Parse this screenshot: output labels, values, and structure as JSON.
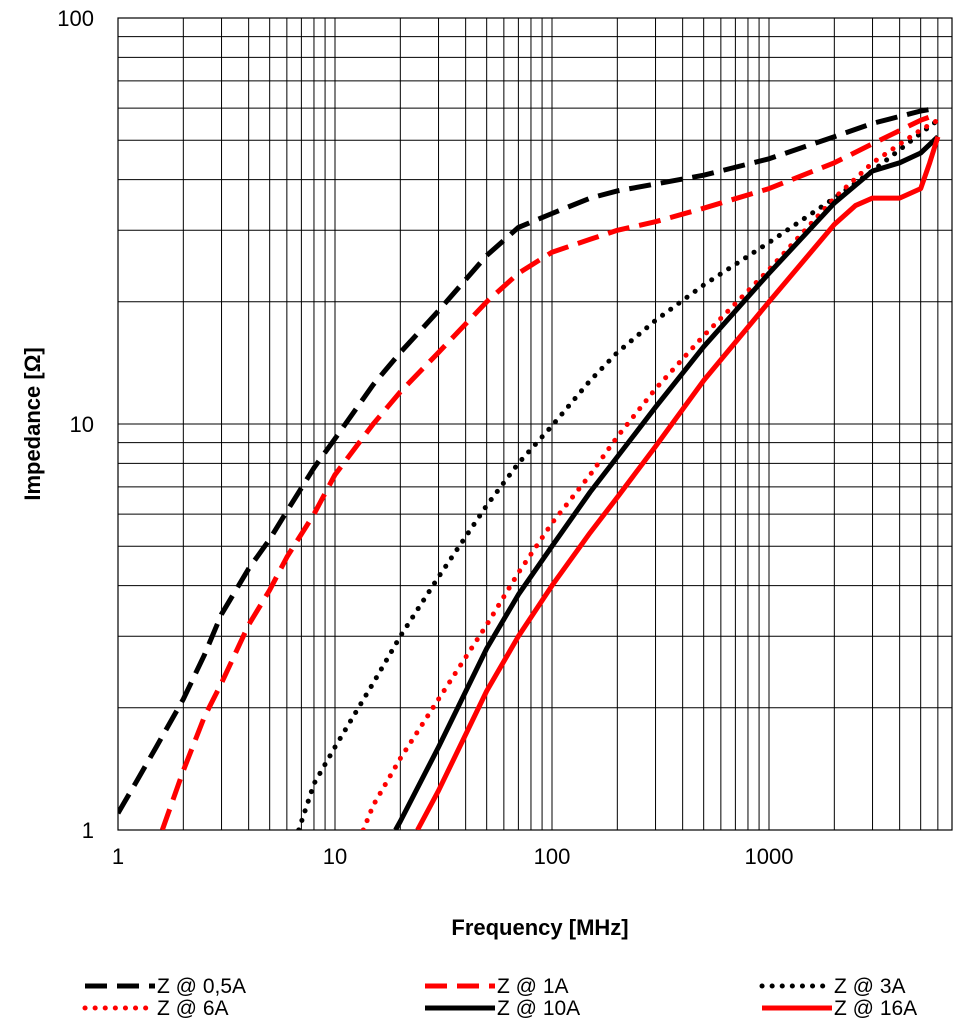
{
  "chart_data": {
    "type": "line",
    "title": "",
    "xlabel": "Frequency [MHz]",
    "ylabel": "Impedance [Ω]",
    "xscale": "log",
    "yscale": "log",
    "xlim": [
      1,
      6000
    ],
    "ylim": [
      1,
      100
    ],
    "grid": true,
    "legend": "bottom",
    "x_tick_labels": [
      "1",
      "10",
      "100",
      "1000"
    ],
    "y_tick_labels": [
      "1",
      "10",
      "100"
    ],
    "series": [
      {
        "name": "Z @ 0,5A",
        "color": "#000000",
        "style": "dash",
        "x": [
          1,
          1.2,
          1.5,
          2,
          2.5,
          3,
          4,
          5,
          6,
          8,
          10,
          15,
          20,
          30,
          50,
          70,
          100,
          150,
          200,
          300,
          500,
          1000,
          2000,
          3000,
          5000,
          6000
        ],
        "y": [
          1.1,
          1.3,
          1.6,
          2.1,
          2.7,
          3.4,
          4.4,
          5.2,
          6.1,
          7.8,
          9.2,
          12.5,
          15,
          19,
          26,
          30.5,
          33,
          36,
          37.5,
          39,
          41,
          45,
          51,
          55,
          59,
          60
        ]
      },
      {
        "name": "Z @ 1A",
        "color": "#ff0000",
        "style": "dash",
        "x": [
          1.6,
          2,
          2.5,
          3,
          4,
          5,
          6,
          8,
          10,
          15,
          20,
          30,
          50,
          70,
          100,
          150,
          200,
          300,
          500,
          1000,
          2000,
          3000,
          5000,
          6000
        ],
        "y": [
          1,
          1.4,
          1.9,
          2.3,
          3.2,
          3.9,
          4.7,
          6,
          7.5,
          10,
          12,
          15,
          20,
          23.5,
          26.5,
          28.5,
          30,
          31.5,
          34,
          38,
          44,
          49,
          56,
          58
        ]
      },
      {
        "name": "Z @ 3A",
        "color": "#000000",
        "style": "dot",
        "x": [
          6.8,
          8,
          10,
          15,
          20,
          30,
          50,
          70,
          100,
          150,
          200,
          300,
          500,
          1000,
          2000,
          3000,
          5000,
          6000
        ],
        "y": [
          1,
          1.3,
          1.6,
          2.3,
          3,
          4.2,
          6.3,
          8,
          9.9,
          12.8,
          15,
          18,
          22,
          28,
          36,
          42,
          52,
          56
        ]
      },
      {
        "name": "Z @ 6A",
        "color": "#ff0000",
        "style": "dot",
        "x": [
          13.5,
          15,
          20,
          30,
          50,
          70,
          100,
          150,
          200,
          300,
          500,
          1000,
          2000,
          3000,
          5000,
          6000
        ],
        "y": [
          1,
          1.15,
          1.5,
          2.1,
          3.2,
          4.3,
          5.7,
          7.5,
          9.3,
          12.2,
          16.5,
          24,
          36,
          44,
          53,
          56
        ]
      },
      {
        "name": "Z @ 10A",
        "color": "#000000",
        "style": "solid",
        "x": [
          19,
          20,
          30,
          50,
          70,
          100,
          150,
          200,
          300,
          500,
          1000,
          2000,
          3000,
          4000,
          5000,
          6000
        ],
        "y": [
          1,
          1.05,
          1.6,
          2.8,
          3.8,
          5,
          6.8,
          8.3,
          11,
          15.5,
          23.5,
          35,
          42,
          44,
          46.5,
          51
        ]
      },
      {
        "name": "Z @ 16A",
        "color": "#ff0000",
        "style": "solid",
        "x": [
          24,
          30,
          50,
          70,
          100,
          150,
          200,
          300,
          500,
          1000,
          2000,
          2500,
          3000,
          4000,
          5000,
          5500,
          6000
        ],
        "y": [
          1,
          1.25,
          2.2,
          3,
          4,
          5.4,
          6.6,
          8.8,
          12.8,
          20,
          31,
          34.5,
          36,
          36,
          38,
          44,
          51
        ]
      }
    ]
  }
}
